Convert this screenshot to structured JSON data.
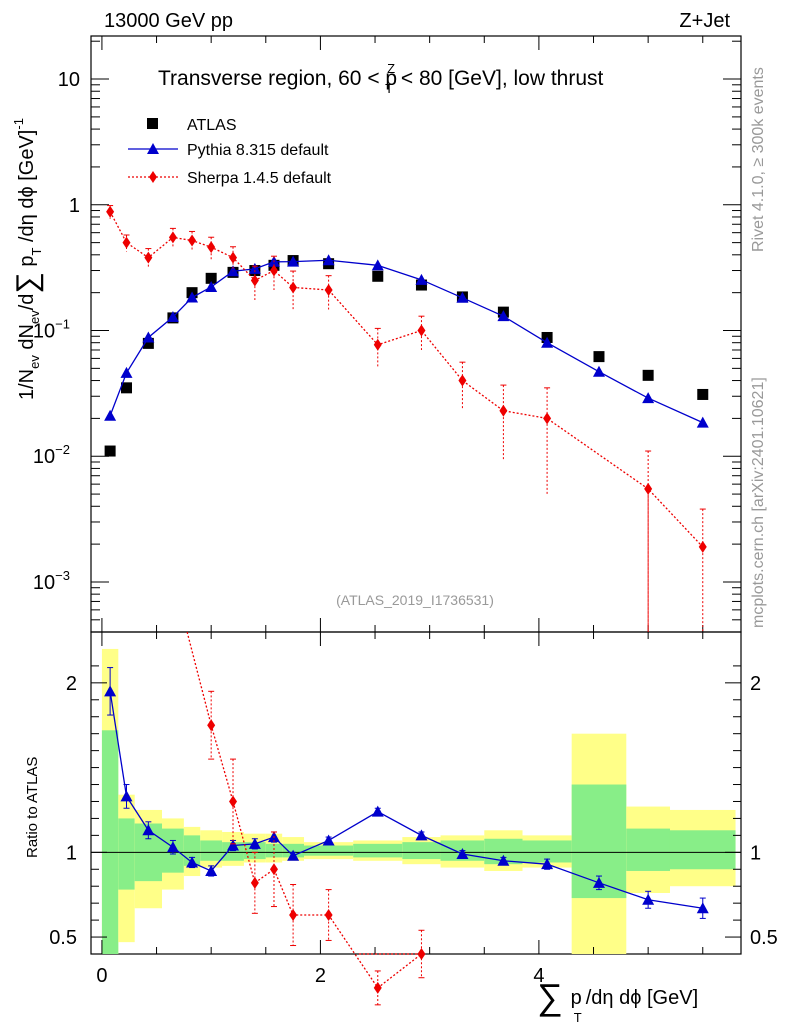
{
  "header": {
    "left": "13000 GeV pp",
    "right": "Z+Jet"
  },
  "side": {
    "upper": "Rivet 4.1.0, ≥ 300k events",
    "lower": "mcplots.cern.ch [arXiv:2401.10621]"
  },
  "watermark": "(ATLAS_2019_I1736531)",
  "chart_data": {
    "type": "line",
    "title": "Transverse region, 60 < p_T^Z < 80 [GeV], low thrust",
    "title_parts": {
      "a": "Transverse region, 60 < p",
      "sub": "T",
      "sup": "Z",
      "b": " < 80 [GeV], low thrust"
    },
    "xlabel": "∑ p_T /dη dϕ [GeV]",
    "xlabel_parts": {
      "sum": "∑",
      "p": "p",
      "sub": "T",
      "rest": "/dη dϕ [GeV]"
    },
    "ylabel": "1/N_ev dN_ev/d∑ p_T /dη dϕ [GeV]^-1",
    "ylabel_parts": {
      "a": "1/N",
      "sub1": "ev",
      "b": " dN",
      "sub2": "ev",
      "c": "/d",
      "sum": "∑",
      "p": " p",
      "sub3": "T",
      "d": " /dη dϕ  [GeV]",
      "sup": "-1"
    },
    "ratio_ylabel": "Ratio to ATLAS",
    "xlim": [
      -0.1,
      5.85
    ],
    "ylim": [
      0.0004,
      22
    ],
    "yscale": "log",
    "ratio_ylim": [
      0.4,
      2.3
    ],
    "x_ticks": [
      0,
      2,
      4
    ],
    "y_ticks": [
      {
        "value": 10,
        "label": "10"
      },
      {
        "value": 1,
        "label": "1"
      },
      {
        "value": 0.1,
        "label": "10",
        "exp": "−1"
      },
      {
        "value": 0.01,
        "label": "10",
        "exp": "−2"
      },
      {
        "value": 0.001,
        "label": "10",
        "exp": "−3"
      }
    ],
    "ratio_y_ticks": [
      {
        "value": 2,
        "label": "2"
      },
      {
        "value": 1,
        "label": "1"
      },
      {
        "value": 0.5,
        "label": "0.5"
      }
    ],
    "legend": [
      "ATLAS",
      "Pythia 8.315 default",
      "Sherpa 1.4.5 default"
    ],
    "bins": [
      [
        0.0,
        0.15
      ],
      [
        0.15,
        0.3
      ],
      [
        0.3,
        0.55
      ],
      [
        0.55,
        0.75
      ],
      [
        0.75,
        0.9
      ],
      [
        0.9,
        1.1
      ],
      [
        1.1,
        1.3
      ],
      [
        1.3,
        1.5
      ],
      [
        1.5,
        1.65
      ],
      [
        1.65,
        1.85
      ],
      [
        1.85,
        2.3
      ],
      [
        2.3,
        2.75
      ],
      [
        2.75,
        3.1
      ],
      [
        3.1,
        3.5
      ],
      [
        3.5,
        3.85
      ],
      [
        3.85,
        4.3
      ],
      [
        4.3,
        4.8
      ],
      [
        4.8,
        5.2
      ],
      [
        5.2,
        5.8
      ]
    ],
    "ratio_band_yellow": [
      [
        0.3,
        2.2
      ],
      [
        0.47,
        1.34
      ],
      [
        0.67,
        1.25
      ],
      [
        0.78,
        1.2
      ],
      [
        0.86,
        1.15
      ],
      [
        0.91,
        1.13
      ],
      [
        0.92,
        1.12
      ],
      [
        0.94,
        1.11
      ],
      [
        0.94,
        1.11
      ],
      [
        0.95,
        1.09
      ],
      [
        0.96,
        1.06
      ],
      [
        0.95,
        1.07
      ],
      [
        0.93,
        1.09
      ],
      [
        0.91,
        1.1
      ],
      [
        0.89,
        1.13
      ],
      [
        0.91,
        1.1
      ],
      [
        0.35,
        1.7
      ],
      [
        0.76,
        1.27
      ],
      [
        0.8,
        1.25
      ]
    ],
    "ratio_band_green": [
      [
        0.35,
        1.72
      ],
      [
        0.78,
        1.2
      ],
      [
        0.83,
        1.17
      ],
      [
        0.88,
        1.14
      ],
      [
        0.92,
        1.1
      ],
      [
        0.95,
        1.07
      ],
      [
        0.95,
        1.06
      ],
      [
        0.96,
        1.06
      ],
      [
        0.97,
        1.05
      ],
      [
        0.97,
        1.05
      ],
      [
        0.98,
        1.04
      ],
      [
        0.97,
        1.05
      ],
      [
        0.96,
        1.06
      ],
      [
        0.95,
        1.07
      ],
      [
        0.93,
        1.08
      ],
      [
        0.94,
        1.07
      ],
      [
        0.73,
        1.4
      ],
      [
        0.89,
        1.14
      ],
      [
        0.9,
        1.13
      ]
    ],
    "series": [
      {
        "name": "ATLAS",
        "color": "#000000",
        "marker": "square",
        "x": [
          0.075,
          0.225,
          0.425,
          0.65,
          0.825,
          1.0,
          1.2,
          1.4,
          1.575,
          1.75,
          2.075,
          2.525,
          2.925,
          3.3,
          3.675,
          4.075,
          4.55,
          5.0,
          5.5
        ],
        "y": [
          0.011,
          0.035,
          0.079,
          0.126,
          0.2,
          0.26,
          0.29,
          0.3,
          0.33,
          0.36,
          0.34,
          0.27,
          0.23,
          0.185,
          0.14,
          0.088,
          0.062,
          0.044,
          0.031
        ]
      },
      {
        "name": "Pythia 8.315 default",
        "color": "#0000cc",
        "marker": "triangle",
        "line": "solid",
        "x": [
          0.075,
          0.225,
          0.425,
          0.65,
          0.825,
          1.0,
          1.2,
          1.4,
          1.575,
          1.75,
          2.075,
          2.525,
          2.925,
          3.3,
          3.675,
          4.075,
          4.55,
          5.0,
          5.5
        ],
        "y": [
          0.021,
          0.046,
          0.088,
          0.128,
          0.183,
          0.222,
          0.296,
          0.309,
          0.352,
          0.353,
          0.362,
          0.33,
          0.253,
          0.182,
          0.13,
          0.08,
          0.047,
          0.029,
          0.0185
        ],
        "ratio": [
          1.95,
          1.33,
          1.13,
          1.03,
          0.94,
          0.89,
          1.04,
          1.05,
          1.09,
          0.98,
          1.07,
          1.24,
          1.1,
          0.99,
          0.95,
          0.93,
          0.82,
          0.72,
          0.67
        ],
        "ratio_err": [
          0.14,
          0.07,
          0.05,
          0.04,
          0.03,
          0.03,
          0.03,
          0.03,
          0.03,
          0.02,
          0.02,
          0.02,
          0.02,
          0.02,
          0.02,
          0.03,
          0.04,
          0.05,
          0.06
        ]
      },
      {
        "name": "Sherpa 1.4.5 default",
        "color": "#ee0000",
        "marker": "diamond",
        "line": "dotted",
        "x": [
          0.075,
          0.225,
          0.425,
          0.65,
          0.825,
          1.0,
          1.2,
          1.4,
          1.575,
          1.75,
          2.075,
          2.525,
          2.925,
          3.3,
          3.675,
          4.075,
          4.55,
          5.0,
          5.5
        ],
        "y": [
          0.88,
          0.5,
          0.38,
          0.55,
          0.52,
          0.46,
          0.38,
          0.25,
          0.3,
          0.22,
          0.21,
          0.077,
          0.1,
          0.04,
          0.023,
          0.02,
          null,
          0.0055,
          0.0019
        ],
        "y_err_rel": [
          0.12,
          0.15,
          0.18,
          0.18,
          0.18,
          0.2,
          0.22,
          0.3,
          0.3,
          0.35,
          0.3,
          0.35,
          0.3,
          0.4,
          0.6,
          0.75,
          null,
          1.0,
          1.0
        ],
        "ratio": [
          null,
          null,
          null,
          null,
          null,
          1.75,
          1.3,
          0.82,
          0.9,
          0.63,
          0.63,
          0.2,
          0.4,
          null,
          null,
          null,
          null,
          null,
          null
        ],
        "ratio_err": [
          null,
          null,
          null,
          null,
          null,
          0.2,
          0.25,
          0.18,
          0.22,
          0.18,
          0.15,
          0.1,
          0.14,
          null,
          null,
          null,
          null,
          null,
          null
        ]
      }
    ]
  }
}
